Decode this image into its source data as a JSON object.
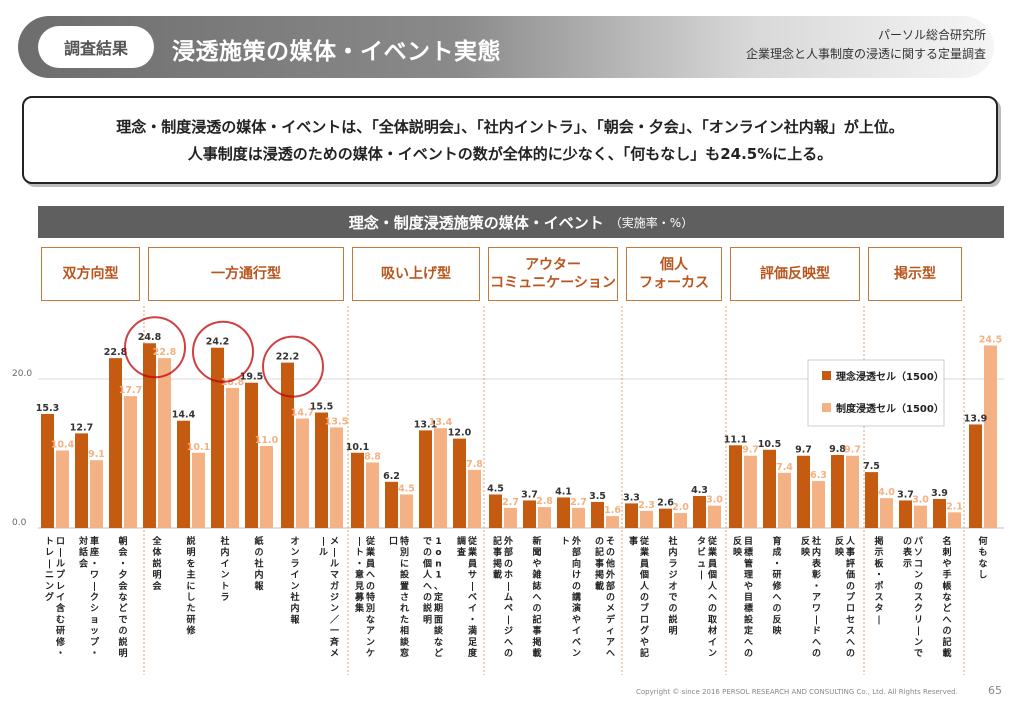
{
  "header": {
    "badge": "調査結果",
    "title": "浸透施策の媒体・イベント実態",
    "org": "パーソル総合研究所",
    "survey": "企業理念と人事制度の浸透に関する定量調査"
  },
  "summary": {
    "line1": "理念・制度浸透の媒体・イベントは、「全体説明会」、「社内イントラ」、「朝会・夕会」、「オンライン社内報」が上位。",
    "line2": "人事制度は浸透のための媒体・イベントの数が全体的に少なく、「何もなし」も24.5%に上る。"
  },
  "footer": {
    "copyright": "Copyright © since 2016 PERSOL RESEARCH AND CONSULTING Co., Ltd. All Rights Reserved.",
    "page": "65"
  },
  "colors": {
    "rinen": "#c55a11",
    "seido": "#f4b183",
    "accent": "#b8561e",
    "highlight": "#c00000"
  },
  "chart_data": {
    "type": "bar",
    "title": "理念・制度浸透施策の媒体・イベント",
    "unit": "（実施率・%）",
    "ylim": [
      0,
      30
    ],
    "yticks": [
      "0.0",
      "20.0"
    ],
    "groups": [
      "双方向型",
      "一方通行型",
      "吸い上げ型",
      "アウター\nコミュニケーション",
      "個人\nフォーカス",
      "評価反映型",
      "掲示型"
    ],
    "categories": [
      "ロールプレイ含む研修・トレーニング",
      "車座・ワークショップ・対話会",
      "朝会・夕会などでの説明",
      "全体説明会",
      "説明を主にした研修",
      "社内イントラ",
      "紙の社内報",
      "オンライン社内報",
      "メールマガジン／一斉メール",
      "従業員への特別なアンケート・意見募集",
      "特別に設置された相談窓口",
      "1on1、定期面談などでの個人への説明",
      "従業員サーベイ・満足度調査",
      "外部のホームページへの記事掲載",
      "新聞や雑誌への記事掲載",
      "外部向けの講演やイベント",
      "その他外部のメディアへの記事掲載",
      "従業員個人のブログや記事",
      "社内ラジオでの説明",
      "従業員個人への取材インタビュー",
      "目標管理や目標設定への反映",
      "育成・研修への反映",
      "社内表彰・アワードへの反映",
      "人事評価のプロセスへの反映",
      "掲示板・ポスター",
      "パソコンのスクリーンでの表示",
      "名刺や手帳などへの記載",
      "何もなし"
    ],
    "group_index": [
      0,
      0,
      0,
      1,
      1,
      1,
      1,
      1,
      1,
      2,
      2,
      2,
      2,
      3,
      3,
      3,
      3,
      4,
      4,
      4,
      5,
      5,
      5,
      5,
      6,
      6,
      6,
      7
    ],
    "series": [
      {
        "name": "理念浸透セル（1500）",
        "values": [
          15.3,
          12.7,
          22.8,
          24.8,
          14.4,
          24.2,
          19.5,
          22.2,
          15.5,
          10.1,
          6.2,
          13.1,
          12.0,
          4.5,
          3.7,
          4.1,
          3.5,
          3.3,
          2.6,
          4.3,
          11.1,
          10.5,
          9.7,
          9.8,
          7.5,
          3.7,
          3.9,
          13.9
        ]
      },
      {
        "name": "制度浸透セル（1500）",
        "values": [
          10.4,
          9.1,
          17.7,
          22.8,
          10.1,
          18.8,
          11.0,
          14.7,
          13.5,
          8.8,
          4.5,
          13.4,
          7.8,
          2.7,
          2.8,
          2.7,
          1.6,
          2.3,
          2.0,
          3.0,
          9.7,
          7.4,
          6.3,
          9.7,
          4.0,
          3.0,
          2.1,
          24.5
        ]
      }
    ],
    "highlighted": [
      "全体説明会",
      "社内イントラ",
      "オンライン社内報"
    ]
  }
}
